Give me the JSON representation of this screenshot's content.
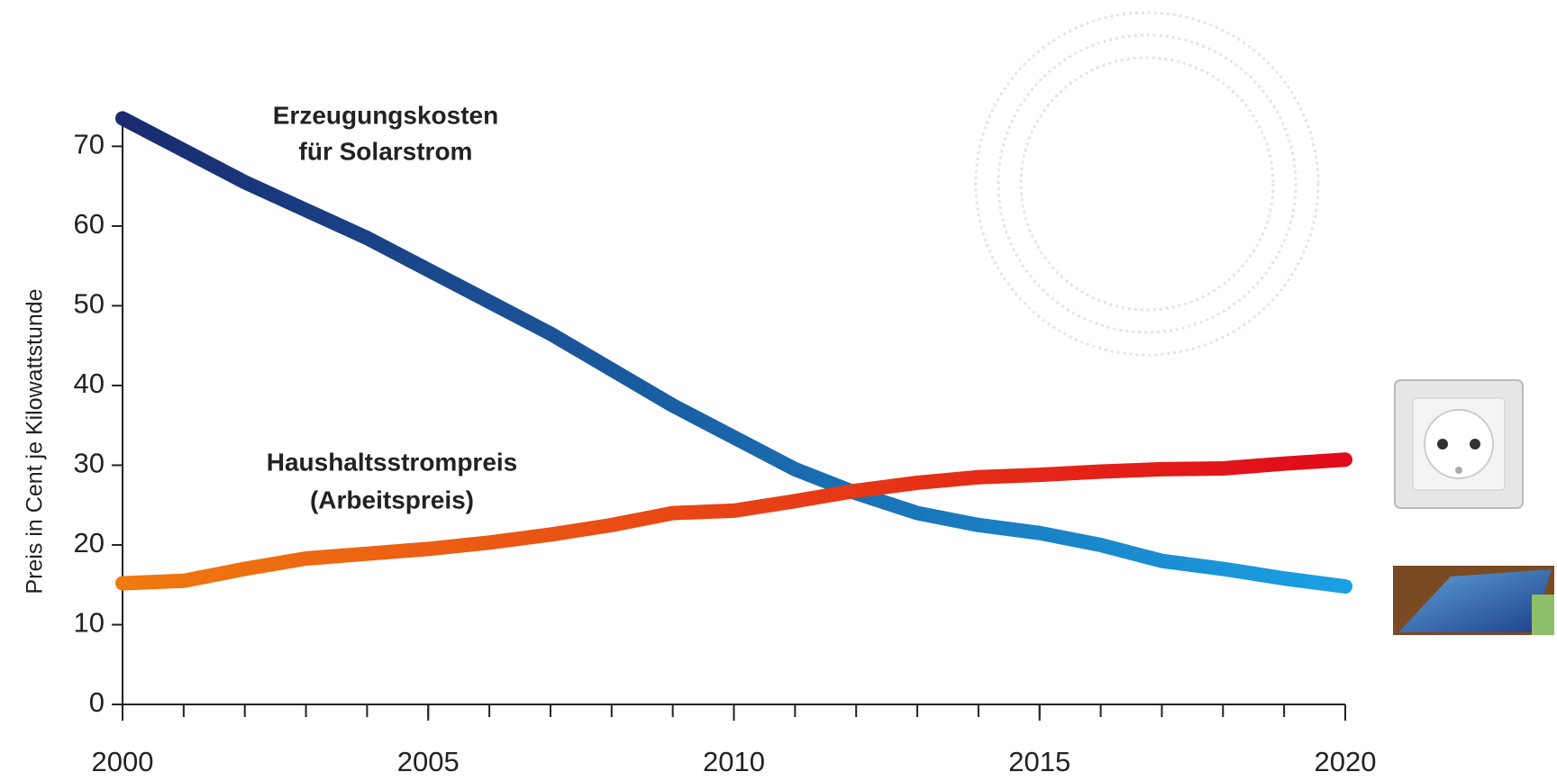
{
  "chart_data": {
    "type": "line",
    "y_label": "Preis in Cent je Kilowattstunde",
    "x": [
      2000,
      2001,
      2002,
      2003,
      2004,
      2005,
      2006,
      2007,
      2008,
      2009,
      2010,
      2011,
      2012,
      2013,
      2014,
      2015,
      2016,
      2017,
      2018,
      2019,
      2020
    ],
    "series": [
      {
        "label": [
          "Erzeugungskosten",
          "für Solarstrom"
        ],
        "colors": [
          "#1a2a6e",
          "#1aa0e4"
        ],
        "values": [
          73.5,
          69.5,
          65.5,
          62,
          58.5,
          54.5,
          50.5,
          46.5,
          42,
          37.5,
          33.5,
          29.5,
          26.5,
          24,
          22.5,
          21.5,
          20,
          18,
          17,
          15.8,
          14.8
        ]
      },
      {
        "label": [
          "Haushaltsstrompreis",
          "(Arbeitspreis)"
        ],
        "colors": [
          "#f07a10",
          "#e00a1a"
        ],
        "values": [
          15.2,
          15.5,
          17,
          18.3,
          18.9,
          19.5,
          20.3,
          21.3,
          22.5,
          24,
          24.3,
          25.5,
          26.8,
          27.8,
          28.5,
          28.8,
          29.2,
          29.5,
          29.6,
          30.2,
          30.7
        ]
      }
    ],
    "xlim": [
      2000,
      2020
    ],
    "xticks": [
      2000,
      2005,
      2010,
      2015,
      2020
    ],
    "ylim": [
      0,
      74
    ],
    "yticks": [
      0,
      10,
      20,
      30,
      40,
      50,
      60,
      70
    ]
  }
}
